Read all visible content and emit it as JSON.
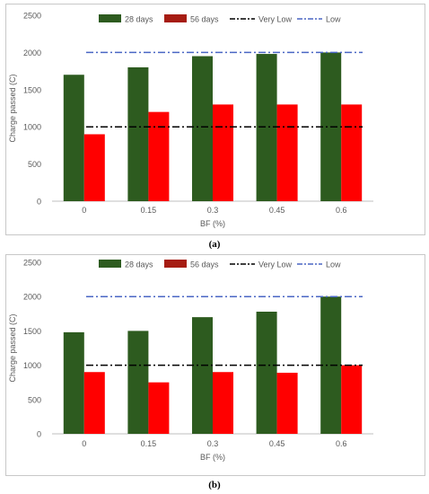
{
  "colors": {
    "d28": "#2d5b1f",
    "d56": "#ff0000",
    "d56_legend": "#a61c12",
    "very_low": "#000000",
    "low": "#4a66c4",
    "axis_text": "#595959",
    "grid": "#d9d9d9"
  },
  "chart_data": [
    {
      "type": "bar",
      "panel": "(a)",
      "categories": [
        "0",
        "0.15",
        "0.3",
        "0.45",
        "0.6"
      ],
      "series": [
        {
          "name": "28 days",
          "values": [
            1700,
            1800,
            1950,
            1980,
            2000
          ]
        },
        {
          "name": "56 days",
          "values": [
            900,
            1200,
            1300,
            1300,
            1300
          ]
        }
      ],
      "reference_lines": [
        {
          "name": "Very Low",
          "value": 1000,
          "style": "dash-dot"
        },
        {
          "name": "Low",
          "value": 2000,
          "style": "dash-dot"
        }
      ],
      "xlabel": "BF (%)",
      "ylabel": "Charge passed (C)",
      "ylim": [
        0,
        2500
      ],
      "yticks": [
        "0",
        "500",
        "1000",
        "1500",
        "2000",
        "2500"
      ],
      "legend_position": "top",
      "grid": false
    },
    {
      "type": "bar",
      "panel": "(b)",
      "categories": [
        "0",
        "0.15",
        "0.3",
        "0.45",
        "0.6"
      ],
      "series": [
        {
          "name": "28 days",
          "values": [
            1480,
            1500,
            1700,
            1780,
            2000
          ]
        },
        {
          "name": "56 days",
          "values": [
            900,
            750,
            900,
            890,
            1000
          ]
        }
      ],
      "reference_lines": [
        {
          "name": "Very Low",
          "value": 1000,
          "style": "dash-dot"
        },
        {
          "name": "Low",
          "value": 2000,
          "style": "dash-dot"
        }
      ],
      "xlabel": "BF (%)",
      "ylabel": "Charge passed (C)",
      "ylim": [
        0,
        2500
      ],
      "yticks": [
        "0",
        "500",
        "1000",
        "1500",
        "2000",
        "2500"
      ],
      "legend_position": "top",
      "grid": false
    }
  ]
}
